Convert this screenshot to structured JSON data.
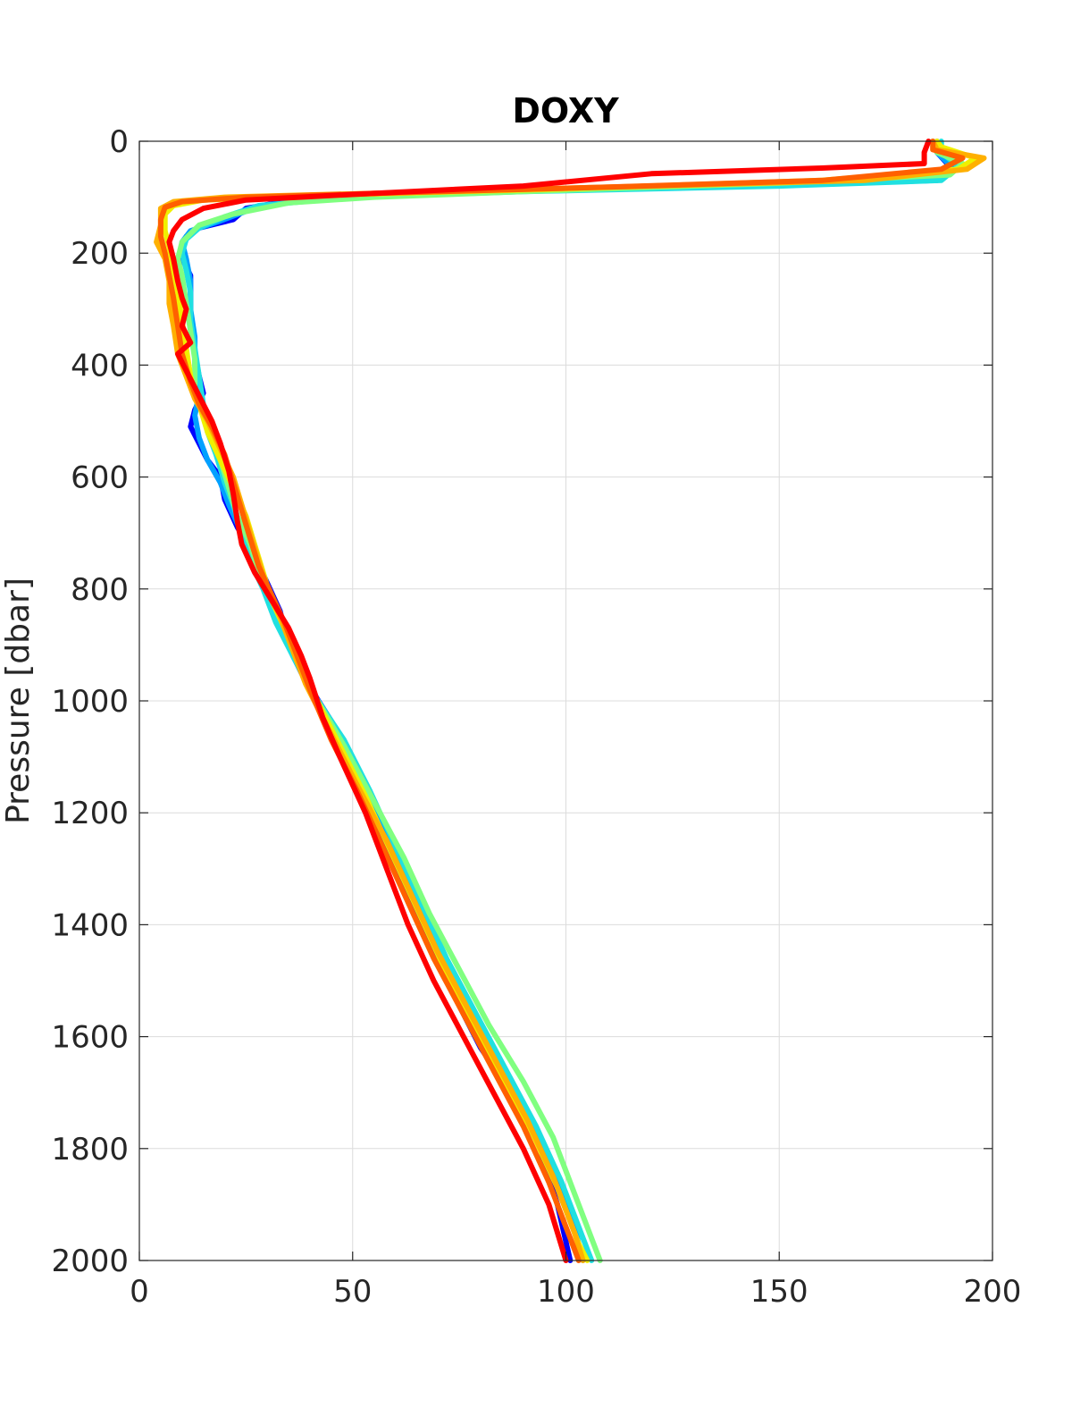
{
  "chart_data": {
    "type": "line",
    "title": "DOXY",
    "xlabel": "",
    "ylabel": "Pressure [dbar]",
    "xlim": [
      0,
      200
    ],
    "ylim": [
      2000,
      0
    ],
    "y_reversed": true,
    "grid": true,
    "legend": "none",
    "xticks": [
      0,
      50,
      100,
      150,
      200
    ],
    "yticks": [
      0,
      200,
      400,
      600,
      800,
      1000,
      1200,
      1400,
      1600,
      1800,
      2000
    ],
    "series": [
      {
        "color": "#0000ff",
        "points": [
          [
            187,
            0
          ],
          [
            187,
            20
          ],
          [
            190,
            45
          ],
          [
            187,
            70
          ],
          [
            140,
            80
          ],
          [
            80,
            90
          ],
          [
            40,
            100
          ],
          [
            25,
            120
          ],
          [
            22,
            140
          ],
          [
            14,
            155
          ],
          [
            11,
            170
          ],
          [
            10,
            190
          ],
          [
            10,
            210
          ],
          [
            12,
            240
          ],
          [
            12,
            280
          ],
          [
            12,
            330
          ],
          [
            13,
            380
          ],
          [
            14,
            420
          ],
          [
            15,
            450
          ],
          [
            13,
            480
          ],
          [
            12,
            510
          ],
          [
            14,
            540
          ],
          [
            16,
            570
          ],
          [
            19,
            600
          ],
          [
            20,
            640
          ],
          [
            23,
            690
          ],
          [
            27,
            740
          ],
          [
            30,
            790
          ],
          [
            33,
            840
          ],
          [
            35,
            900
          ],
          [
            38,
            950
          ],
          [
            42,
            1000
          ],
          [
            47,
            1060
          ],
          [
            52,
            1150
          ],
          [
            57,
            1250
          ],
          [
            63,
            1350
          ],
          [
            68,
            1440
          ],
          [
            74,
            1530
          ],
          [
            80,
            1620
          ],
          [
            88,
            1710
          ],
          [
            94,
            1800
          ],
          [
            98,
            1900
          ],
          [
            101,
            2000
          ]
        ]
      },
      {
        "color": "#00a0ff",
        "points": [
          [
            186,
            0
          ],
          [
            187,
            20
          ],
          [
            191,
            50
          ],
          [
            170,
            70
          ],
          [
            120,
            80
          ],
          [
            80,
            90
          ],
          [
            40,
            100
          ],
          [
            25,
            125
          ],
          [
            18,
            145
          ],
          [
            12,
            160
          ],
          [
            10,
            180
          ],
          [
            11,
            210
          ],
          [
            12,
            250
          ],
          [
            12,
            300
          ],
          [
            13,
            350
          ],
          [
            13,
            400
          ],
          [
            14,
            450
          ],
          [
            13,
            490
          ],
          [
            14,
            530
          ],
          [
            16,
            570
          ],
          [
            19,
            610
          ],
          [
            21,
            650
          ],
          [
            24,
            700
          ],
          [
            27,
            750
          ],
          [
            30,
            800
          ],
          [
            33,
            860
          ],
          [
            36,
            920
          ],
          [
            40,
            980
          ],
          [
            46,
            1050
          ],
          [
            52,
            1140
          ],
          [
            58,
            1240
          ],
          [
            64,
            1340
          ],
          [
            70,
            1440
          ],
          [
            77,
            1540
          ],
          [
            84,
            1640
          ],
          [
            91,
            1740
          ],
          [
            97,
            1840
          ],
          [
            102,
            1940
          ],
          [
            104,
            2000
          ]
        ]
      },
      {
        "color": "#20e0e0",
        "points": [
          [
            188,
            0
          ],
          [
            188,
            20
          ],
          [
            192,
            45
          ],
          [
            188,
            70
          ],
          [
            150,
            80
          ],
          [
            90,
            90
          ],
          [
            50,
            100
          ],
          [
            28,
            115
          ],
          [
            20,
            135
          ],
          [
            14,
            155
          ],
          [
            11,
            175
          ],
          [
            10,
            200
          ],
          [
            11,
            230
          ],
          [
            12,
            270
          ],
          [
            12,
            320
          ],
          [
            13,
            370
          ],
          [
            14,
            420
          ],
          [
            15,
            470
          ],
          [
            16,
            520
          ],
          [
            18,
            560
          ],
          [
            20,
            610
          ],
          [
            22,
            650
          ],
          [
            24,
            700
          ],
          [
            26,
            750
          ],
          [
            29,
            800
          ],
          [
            32,
            860
          ],
          [
            36,
            920
          ],
          [
            41,
            990
          ],
          [
            48,
            1070
          ],
          [
            54,
            1160
          ],
          [
            60,
            1260
          ],
          [
            66,
            1360
          ],
          [
            72,
            1460
          ],
          [
            79,
            1560
          ],
          [
            86,
            1660
          ],
          [
            93,
            1760
          ],
          [
            99,
            1860
          ],
          [
            104,
            1960
          ],
          [
            106,
            2000
          ]
        ]
      },
      {
        "color": "#80ff80",
        "points": [
          [
            186,
            0
          ],
          [
            187,
            20
          ],
          [
            193,
            40
          ],
          [
            190,
            60
          ],
          [
            150,
            75
          ],
          [
            90,
            90
          ],
          [
            55,
            100
          ],
          [
            35,
            110
          ],
          [
            22,
            130
          ],
          [
            14,
            150
          ],
          [
            10,
            180
          ],
          [
            9,
            210
          ],
          [
            10,
            240
          ],
          [
            11,
            290
          ],
          [
            12,
            340
          ],
          [
            13,
            390
          ],
          [
            13,
            440
          ],
          [
            15,
            490
          ],
          [
            17,
            530
          ],
          [
            19,
            570
          ],
          [
            21,
            620
          ],
          [
            23,
            670
          ],
          [
            26,
            720
          ],
          [
            28,
            770
          ],
          [
            31,
            820
          ],
          [
            34,
            870
          ],
          [
            37,
            930
          ],
          [
            41,
            990
          ],
          [
            48,
            1080
          ],
          [
            55,
            1180
          ],
          [
            62,
            1280
          ],
          [
            68,
            1380
          ],
          [
            75,
            1480
          ],
          [
            82,
            1580
          ],
          [
            90,
            1680
          ],
          [
            97,
            1780
          ],
          [
            102,
            1880
          ],
          [
            107,
            1980
          ],
          [
            108,
            2000
          ]
        ]
      },
      {
        "color": "#f0f000",
        "points": [
          [
            187,
            0
          ],
          [
            188,
            10
          ],
          [
            196,
            30
          ],
          [
            192,
            50
          ],
          [
            160,
            70
          ],
          [
            100,
            85
          ],
          [
            50,
            95
          ],
          [
            15,
            105
          ],
          [
            8,
            115
          ],
          [
            6,
            130
          ],
          [
            6,
            160
          ],
          [
            7,
            190
          ],
          [
            8,
            230
          ],
          [
            9,
            270
          ],
          [
            10,
            320
          ],
          [
            11,
            370
          ],
          [
            12,
            420
          ],
          [
            14,
            470
          ],
          [
            16,
            520
          ],
          [
            19,
            570
          ],
          [
            22,
            620
          ],
          [
            25,
            670
          ],
          [
            27,
            720
          ],
          [
            29,
            770
          ],
          [
            31,
            820
          ],
          [
            34,
            870
          ],
          [
            37,
            930
          ],
          [
            41,
            990
          ],
          [
            47,
            1080
          ],
          [
            53,
            1170
          ],
          [
            59,
            1270
          ],
          [
            65,
            1370
          ],
          [
            71,
            1470
          ],
          [
            78,
            1570
          ],
          [
            85,
            1670
          ],
          [
            92,
            1770
          ],
          [
            98,
            1870
          ],
          [
            103,
            1970
          ],
          [
            105,
            2000
          ]
        ]
      },
      {
        "color": "#ffb000",
        "points": [
          [
            186,
            0
          ],
          [
            187,
            15
          ],
          [
            198,
            30
          ],
          [
            194,
            50
          ],
          [
            170,
            70
          ],
          [
            120,
            80
          ],
          [
            60,
            92
          ],
          [
            20,
            100
          ],
          [
            8,
            108
          ],
          [
            5,
            120
          ],
          [
            5,
            150
          ],
          [
            4,
            180
          ],
          [
            6,
            210
          ],
          [
            7,
            250
          ],
          [
            7,
            290
          ],
          [
            8,
            330
          ],
          [
            9,
            380
          ],
          [
            11,
            420
          ],
          [
            13,
            460
          ],
          [
            16,
            500
          ],
          [
            19,
            550
          ],
          [
            22,
            600
          ],
          [
            24,
            650
          ],
          [
            26,
            700
          ],
          [
            28,
            750
          ],
          [
            30,
            800
          ],
          [
            33,
            850
          ],
          [
            36,
            910
          ],
          [
            39,
            970
          ],
          [
            45,
            1060
          ],
          [
            51,
            1150
          ],
          [
            58,
            1250
          ],
          [
            64,
            1350
          ],
          [
            70,
            1450
          ],
          [
            77,
            1550
          ],
          [
            84,
            1650
          ],
          [
            91,
            1750
          ],
          [
            97,
            1850
          ],
          [
            102,
            1950
          ],
          [
            104,
            2000
          ]
        ]
      },
      {
        "color": "#ff6000",
        "points": [
          [
            186,
            0
          ],
          [
            186,
            15
          ],
          [
            193,
            30
          ],
          [
            188,
            50
          ],
          [
            160,
            70
          ],
          [
            110,
            82
          ],
          [
            60,
            92
          ],
          [
            25,
            100
          ],
          [
            10,
            108
          ],
          [
            6,
            118
          ],
          [
            5,
            140
          ],
          [
            5,
            170
          ],
          [
            6,
            200
          ],
          [
            7,
            240
          ],
          [
            8,
            280
          ],
          [
            9,
            330
          ],
          [
            10,
            380
          ],
          [
            12,
            430
          ],
          [
            14,
            470
          ],
          [
            17,
            510
          ],
          [
            20,
            560
          ],
          [
            22,
            610
          ],
          [
            24,
            660
          ],
          [
            26,
            710
          ],
          [
            28,
            760
          ],
          [
            31,
            810
          ],
          [
            34,
            860
          ],
          [
            37,
            920
          ],
          [
            40,
            980
          ],
          [
            45,
            1070
          ],
          [
            51,
            1160
          ],
          [
            57,
            1260
          ],
          [
            63,
            1360
          ],
          [
            69,
            1460
          ],
          [
            76,
            1560
          ],
          [
            83,
            1660
          ],
          [
            90,
            1760
          ],
          [
            96,
            1860
          ],
          [
            101,
            1960
          ],
          [
            103,
            2000
          ]
        ]
      },
      {
        "color": "#ff0000",
        "points": [
          [
            185,
            0
          ],
          [
            184,
            20
          ],
          [
            184,
            40
          ],
          [
            160,
            48
          ],
          [
            120,
            58
          ],
          [
            90,
            80
          ],
          [
            50,
            95
          ],
          [
            25,
            105
          ],
          [
            15,
            120
          ],
          [
            10,
            140
          ],
          [
            8,
            160
          ],
          [
            7,
            180
          ],
          [
            8,
            210
          ],
          [
            9,
            250
          ],
          [
            10,
            280
          ],
          [
            11,
            300
          ],
          [
            10,
            330
          ],
          [
            12,
            360
          ],
          [
            9,
            380
          ],
          [
            11,
            410
          ],
          [
            13,
            440
          ],
          [
            15,
            470
          ],
          [
            17,
            500
          ],
          [
            19,
            540
          ],
          [
            21,
            590
          ],
          [
            22,
            630
          ],
          [
            23,
            680
          ],
          [
            24,
            720
          ],
          [
            27,
            770
          ],
          [
            31,
            820
          ],
          [
            35,
            870
          ],
          [
            38,
            920
          ],
          [
            40,
            960
          ],
          [
            43,
            1030
          ],
          [
            47,
            1100
          ],
          [
            53,
            1200
          ],
          [
            58,
            1300
          ],
          [
            63,
            1400
          ],
          [
            69,
            1500
          ],
          [
            76,
            1600
          ],
          [
            83,
            1700
          ],
          [
            90,
            1800
          ],
          [
            96,
            1900
          ],
          [
            100,
            2000
          ]
        ]
      }
    ]
  }
}
